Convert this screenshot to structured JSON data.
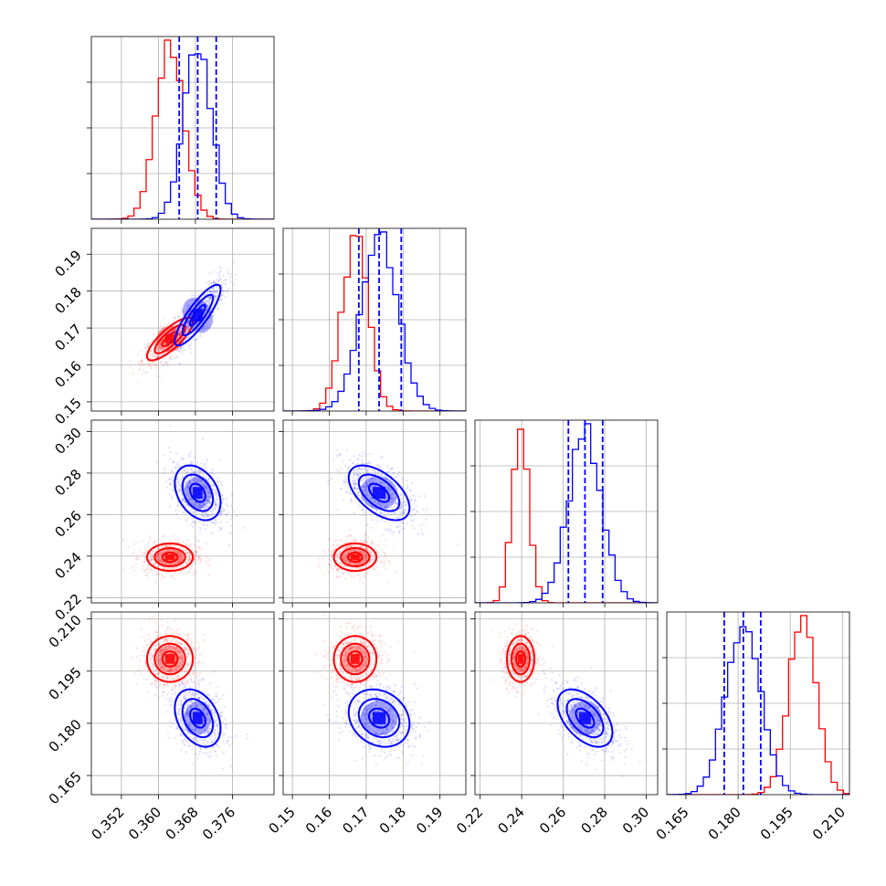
{
  "chart_data": {
    "type": "corner",
    "parameters": [
      {
        "ticks": [
          0.352,
          0.36,
          0.368,
          0.376
        ],
        "tick_labels": [
          "0.352",
          "0.360",
          "0.368",
          "0.376"
        ],
        "range": [
          0.3455,
          0.385
        ]
      },
      {
        "ticks": [
          0.15,
          0.16,
          0.17,
          0.18,
          0.19
        ],
        "tick_labels": [
          "0.15",
          "0.16",
          "0.17",
          "0.18",
          "0.19"
        ],
        "range": [
          0.1475,
          0.197
        ]
      },
      {
        "ticks": [
          0.22,
          0.24,
          0.26,
          0.28,
          0.3
        ],
        "tick_labels": [
          "0.22",
          "0.24",
          "0.26",
          "0.28",
          "0.30"
        ],
        "range": [
          0.2175,
          0.3055
        ]
      },
      {
        "ticks": [
          0.165,
          0.18,
          0.195,
          0.21
        ],
        "tick_labels": [
          "0.165",
          "0.180",
          "0.195",
          "0.210"
        ],
        "range": [
          0.1595,
          0.212
        ]
      }
    ],
    "series": [
      {
        "color": "#ff0000",
        "means": [
          0.3625,
          0.167,
          0.2395,
          0.1985
        ],
        "sigmas": [
          0.003,
          0.0035,
          0.004,
          0.004
        ]
      },
      {
        "color": "#0000ff",
        "means": [
          0.3685,
          0.1735,
          0.2705,
          0.1815
        ],
        "sigmas": [
          0.003,
          0.005,
          0.008,
          0.005
        ],
        "quantiles": [
          [
            0.3645,
            0.3685,
            0.3725
          ],
          [
            0.168,
            0.1735,
            0.1795
          ],
          [
            0.2625,
            0.2705,
            0.279
          ],
          [
            0.176,
            0.1815,
            0.1865
          ]
        ]
      }
    ],
    "correlations": {
      "red": {
        "0-1": 0.8,
        "0-2": 0.0,
        "0-3": 0.0,
        "1-2": 0.0,
        "1-3": 0.0,
        "2-3": 0.0
      },
      "blue": {
        "0-1": 0.85,
        "0-2": -0.35,
        "0-3": -0.35,
        "1-2": -0.55,
        "1-3": -0.2,
        "2-3": -0.5
      }
    },
    "grid": true,
    "xlabel": "",
    "ylabel": "",
    "title": ""
  }
}
